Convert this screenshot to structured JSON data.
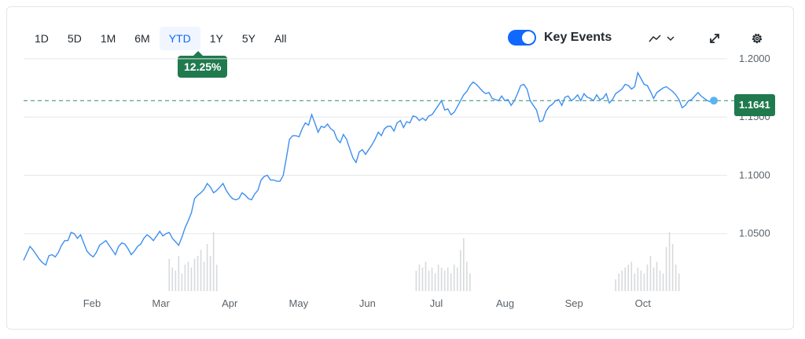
{
  "ranges": [
    "1D",
    "5D",
    "1M",
    "6M",
    "YTD",
    "1Y",
    "5Y",
    "All"
  ],
  "active_range": "YTD",
  "change_badge": "12.25%",
  "key_events": {
    "label": "Key Events",
    "on": true
  },
  "tools": {
    "chart_type_icon": "line-chart-icon",
    "expand_icon": "expand-icon",
    "settings_icon": "gear-icon"
  },
  "colors": {
    "line": "#3d8ff0",
    "accent": "#0f69ff",
    "positive": "#207a4e",
    "grid": "#e5e8eb",
    "volume": "#d7dadd"
  },
  "last_price": "1.1641",
  "chart_data": {
    "type": "line",
    "x_labels": [
      "Feb",
      "Mar",
      "Apr",
      "May",
      "Jun",
      "Jul",
      "Aug",
      "Sep",
      "Oct"
    ],
    "y_ticks": [
      "1.2000",
      "1.1500",
      "1.1000",
      "1.0500"
    ],
    "ylim": [
      1.0,
      1.21
    ],
    "reference_line": 1.1641,
    "series": [
      {
        "values": [
          1.027,
          1.033,
          1.039,
          1.036,
          1.032,
          1.028,
          1.025,
          1.023,
          1.031,
          1.032,
          1.03,
          1.034,
          1.04,
          1.044,
          1.044,
          1.051,
          1.05,
          1.046,
          1.049,
          1.042,
          1.035,
          1.032,
          1.03,
          1.034,
          1.04,
          1.042,
          1.044,
          1.04,
          1.036,
          1.032,
          1.039,
          1.042,
          1.041,
          1.037,
          1.032,
          1.035,
          1.039,
          1.041,
          1.046,
          1.049,
          1.047,
          1.044,
          1.048,
          1.052,
          1.048,
          1.05,
          1.051,
          1.046,
          1.043,
          1.04,
          1.047,
          1.055,
          1.061,
          1.068,
          1.08,
          1.083,
          1.085,
          1.088,
          1.093,
          1.09,
          1.085,
          1.087,
          1.09,
          1.093,
          1.087,
          1.083,
          1.08,
          1.079,
          1.08,
          1.085,
          1.083,
          1.08,
          1.079,
          1.084,
          1.087,
          1.096,
          1.099,
          1.1,
          1.096,
          1.096,
          1.095,
          1.095,
          1.1,
          1.115,
          1.131,
          1.134,
          1.134,
          1.133,
          1.14,
          1.145,
          1.143,
          1.152,
          1.145,
          1.137,
          1.142,
          1.141,
          1.144,
          1.14,
          1.138,
          1.131,
          1.128,
          1.135,
          1.131,
          1.123,
          1.115,
          1.111,
          1.12,
          1.122,
          1.118,
          1.122,
          1.126,
          1.131,
          1.137,
          1.134,
          1.14,
          1.142,
          1.142,
          1.138,
          1.145,
          1.147,
          1.141,
          1.146,
          1.145,
          1.151,
          1.15,
          1.147,
          1.149,
          1.147,
          1.151,
          1.152,
          1.156,
          1.16,
          1.164,
          1.156,
          1.157,
          1.152,
          1.154,
          1.159,
          1.164,
          1.169,
          1.172,
          1.177,
          1.18,
          1.178,
          1.175,
          1.172,
          1.17,
          1.171,
          1.166,
          1.165,
          1.164,
          1.168,
          1.164,
          1.165,
          1.16,
          1.164,
          1.17,
          1.177,
          1.178,
          1.174,
          1.164,
          1.16,
          1.156,
          1.146,
          1.147,
          1.155,
          1.159,
          1.161,
          1.164,
          1.165,
          1.16,
          1.167,
          1.168,
          1.164,
          1.166,
          1.169,
          1.164,
          1.17,
          1.167,
          1.166,
          1.164,
          1.169,
          1.165,
          1.166,
          1.17,
          1.162,
          1.165,
          1.17,
          1.172,
          1.174,
          1.178,
          1.177,
          1.174,
          1.176,
          1.188,
          1.183,
          1.178,
          1.177,
          1.172,
          1.166,
          1.171,
          1.173,
          1.175,
          1.176,
          1.174,
          1.172,
          1.169,
          1.165,
          1.158,
          1.16,
          1.164,
          1.165,
          1.168,
          1.171,
          1.168,
          1.166,
          1.164,
          1.163,
          1.1641
        ]
      }
    ],
    "volume": [
      0,
      0,
      0,
      0,
      0,
      0,
      0,
      0,
      0,
      0,
      0,
      0,
      0,
      0,
      0,
      0,
      0,
      0,
      0,
      0,
      0,
      0,
      0,
      0,
      0,
      0,
      0,
      0,
      0,
      0,
      0,
      0,
      0,
      0,
      0,
      0,
      0,
      0,
      0,
      0,
      0,
      0,
      0,
      0,
      0,
      0,
      0.55,
      0.4,
      0.35,
      0.6,
      0.3,
      0.45,
      0.5,
      0.4,
      0.55,
      0.6,
      0.7,
      0.5,
      0.8,
      0.6,
      1.0,
      0.45,
      0,
      0,
      0,
      0,
      0,
      0,
      0,
      0,
      0,
      0,
      0,
      0,
      0,
      0,
      0,
      0,
      0,
      0,
      0,
      0,
      0,
      0,
      0,
      0,
      0,
      0,
      0,
      0,
      0,
      0,
      0,
      0,
      0,
      0,
      0,
      0,
      0,
      0,
      0,
      0,
      0,
      0,
      0,
      0,
      0,
      0,
      0,
      0,
      0,
      0,
      0,
      0,
      0,
      0,
      0,
      0,
      0,
      0,
      0,
      0,
      0,
      0,
      0.35,
      0.45,
      0.4,
      0.5,
      0.35,
      0.4,
      0.3,
      0.45,
      0.4,
      0.35,
      0.4,
      0.3,
      0.45,
      0.4,
      0.7,
      0.9,
      0.5,
      0.3,
      0,
      0,
      0,
      0,
      0,
      0,
      0,
      0,
      0,
      0,
      0,
      0,
      0,
      0,
      0,
      0,
      0,
      0,
      0,
      0,
      0,
      0,
      0,
      0,
      0,
      0,
      0,
      0,
      0,
      0,
      0,
      0,
      0,
      0,
      0,
      0,
      0,
      0,
      0,
      0,
      0,
      0,
      0,
      0,
      0,
      0.2,
      0.3,
      0.35,
      0.4,
      0.45,
      0.5,
      0.3,
      0.4,
      0.35,
      0.3,
      0.45,
      0.6,
      0.4,
      0.5,
      0.35,
      0.3,
      0.75,
      1.0,
      0.8,
      0.45,
      0.3,
      0,
      0,
      0,
      0,
      0,
      0,
      0,
      0,
      0,
      0,
      0,
      0,
      0,
      0,
      0,
      0,
      0,
      0,
      0,
      0,
      0,
      0,
      0,
      0,
      0,
      0,
      0,
      0,
      0,
      0,
      0,
      0,
      0,
      0,
      0,
      0,
      0,
      0,
      0
    ]
  }
}
